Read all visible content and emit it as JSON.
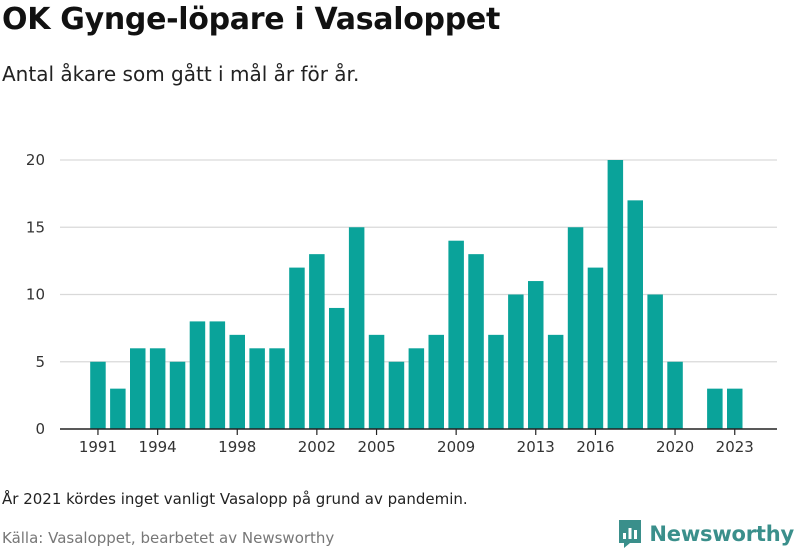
{
  "header": {
    "title": "OK Gynge-löpare i Vasaloppet",
    "subtitle": "Antal åkare som gått i mål år för år."
  },
  "footer": {
    "note": "År 2021 kördes inget vanligt Vasalopp på grund av pandemin.",
    "source": "Källa: Vasaloppet, bearbetet av Newsworthy",
    "brand": "Newsworthy",
    "brand_icon": "newsworthy-logo-icon"
  },
  "colors": {
    "bar": "#0aa39a",
    "grid": "#d9d9d9",
    "axis": "#222222",
    "brand": "#3a8f8b"
  },
  "chart_data": {
    "type": "bar",
    "title": "OK Gynge-löpare i Vasaloppet",
    "subtitle": "Antal åkare som gått i mål år för år.",
    "xlabel": "",
    "ylabel": "",
    "x": [
      1991,
      1992,
      1993,
      1994,
      1995,
      1996,
      1997,
      1998,
      1999,
      2000,
      2001,
      2002,
      2003,
      2004,
      2005,
      2006,
      2007,
      2008,
      2009,
      2010,
      2011,
      2012,
      2013,
      2014,
      2015,
      2016,
      2017,
      2018,
      2019,
      2020,
      2021,
      2022,
      2023
    ],
    "values": [
      5,
      3,
      6,
      6,
      5,
      8,
      8,
      7,
      6,
      6,
      12,
      13,
      9,
      15,
      7,
      5,
      6,
      7,
      14,
      13,
      7,
      10,
      11,
      7,
      15,
      12,
      20,
      17,
      10,
      5,
      null,
      3,
      3
    ],
    "xticks": [
      1991,
      1994,
      1998,
      2002,
      2005,
      2009,
      2013,
      2016,
      2020,
      2023
    ],
    "yticks": [
      0,
      5,
      10,
      15,
      20
    ],
    "ylim": [
      0,
      20
    ],
    "grid": true,
    "legend": "none"
  }
}
